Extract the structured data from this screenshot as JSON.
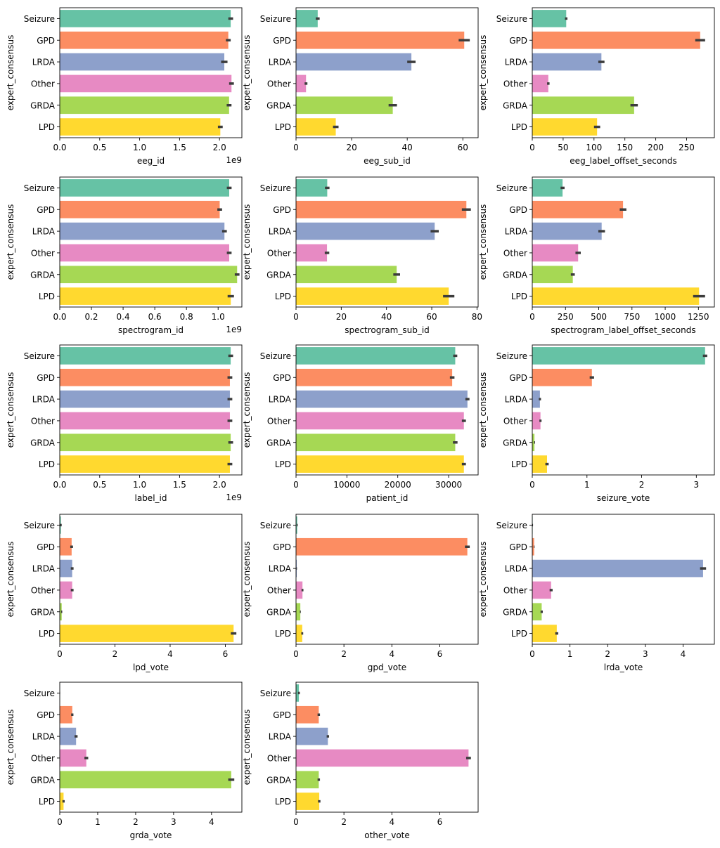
{
  "shared": {
    "categories": [
      "Seizure",
      "GPD",
      "LRDA",
      "Other",
      "GRDA",
      "LPD"
    ],
    "ylabel": "expert_consensus",
    "colors": [
      "#66c2a5",
      "#fc8d62",
      "#8da0cb",
      "#e78ac3",
      "#a6d854",
      "#ffd92f"
    ],
    "errorbar_color": "#3c3c3c"
  },
  "chart_data": [
    {
      "type": "bar",
      "orientation": "horizontal",
      "xlabel": "eeg_id",
      "offset_text": "1e9",
      "xlim": [
        0,
        2.28
      ],
      "xticks": [
        "0.0",
        "0.5",
        "1.0",
        "1.5",
        "2.0"
      ],
      "xtick_values": [
        0,
        0.5,
        1.0,
        1.5,
        2.0
      ],
      "values": [
        2.14,
        2.11,
        2.06,
        2.15,
        2.12,
        2.01
      ],
      "err": [
        0.03,
        0.03,
        0.04,
        0.03,
        0.03,
        0.03
      ]
    },
    {
      "type": "bar",
      "orientation": "horizontal",
      "xlabel": "eeg_sub_id",
      "offset_text": "",
      "xlim": [
        0,
        65.5
      ],
      "xticks": [
        "0",
        "20",
        "40",
        "60"
      ],
      "xtick_values": [
        0,
        20,
        40,
        60
      ],
      "values": [
        7.8,
        60.5,
        41.5,
        3.6,
        34.8,
        14.3
      ],
      "err": [
        0.7,
        2.0,
        1.5,
        0.5,
        1.5,
        1.0
      ]
    },
    {
      "type": "bar",
      "orientation": "horizontal",
      "xlabel": "eeg_label_offset_seconds",
      "offset_text": "",
      "xlim": [
        0,
        295
      ],
      "xticks": [
        "0",
        "50",
        "100",
        "150",
        "200",
        "250"
      ],
      "xtick_values": [
        0,
        50,
        100,
        150,
        200,
        250
      ],
      "values": [
        55,
        272,
        112,
        26,
        165,
        105
      ],
      "err": [
        2,
        8,
        5,
        2,
        6,
        5
      ]
    },
    {
      "type": "bar",
      "orientation": "horizontal",
      "xlabel": "spectrogram_id",
      "offset_text": "1e9",
      "xlim": [
        0,
        1.15
      ],
      "xticks": [
        "0.0",
        "0.2",
        "0.4",
        "0.6",
        "0.8",
        "1.0"
      ],
      "xtick_values": [
        0,
        0.2,
        0.4,
        0.6,
        0.8,
        1.0
      ],
      "values": [
        1.07,
        1.01,
        1.04,
        1.07,
        1.12,
        1.08
      ],
      "err": [
        0.015,
        0.015,
        0.015,
        0.015,
        0.015,
        0.02
      ]
    },
    {
      "type": "bar",
      "orientation": "horizontal",
      "xlabel": "spectrogram_sub_id",
      "offset_text": "",
      "xlim": [
        0,
        80.5
      ],
      "xticks": [
        "0",
        "20",
        "40",
        "60",
        "80"
      ],
      "xtick_values": [
        0,
        20,
        40,
        60,
        80
      ],
      "values": [
        13.8,
        75.3,
        61.3,
        13.7,
        44.5,
        67.5
      ],
      "err": [
        1.0,
        2.0,
        1.8,
        1.0,
        1.5,
        2.5
      ]
    },
    {
      "type": "bar",
      "orientation": "horizontal",
      "xlabel": "spectrogram_label_offset_seconds",
      "offset_text": "",
      "xlim": [
        0,
        1370
      ],
      "xticks": [
        "0",
        "250",
        "500",
        "750",
        "1000",
        "1250"
      ],
      "xtick_values": [
        0,
        250,
        500,
        750,
        1000,
        1250
      ],
      "values": [
        228,
        683,
        522,
        345,
        305,
        1255
      ],
      "err": [
        15,
        25,
        25,
        20,
        15,
        45
      ]
    },
    {
      "type": "bar",
      "orientation": "horizontal",
      "xlabel": "label_id",
      "offset_text": "1e9",
      "xlim": [
        0,
        2.28
      ],
      "xticks": [
        "0.0",
        "0.5",
        "1.0",
        "1.5",
        "2.0"
      ],
      "xtick_values": [
        0,
        0.5,
        1.0,
        1.5,
        2.0
      ],
      "values": [
        2.14,
        2.13,
        2.13,
        2.13,
        2.14,
        2.13
      ],
      "err": [
        0.03,
        0.03,
        0.03,
        0.03,
        0.03,
        0.03
      ]
    },
    {
      "type": "bar",
      "orientation": "horizontal",
      "xlabel": "patient_id",
      "offset_text": "",
      "xlim": [
        0,
        35800
      ],
      "xticks": [
        "0",
        "10000",
        "20000",
        "30000"
      ],
      "xtick_values": [
        0,
        10000,
        20000,
        30000
      ],
      "values": [
        31300,
        30700,
        33700,
        33000,
        31300,
        33000
      ],
      "err": [
        400,
        450,
        400,
        400,
        450,
        400
      ]
    },
    {
      "type": "bar",
      "orientation": "horizontal",
      "xlabel": "seizure_vote",
      "offset_text": "",
      "xlim": [
        0,
        3.33
      ],
      "xticks": [
        "0",
        "1",
        "2",
        "3"
      ],
      "xtick_values": [
        0,
        1,
        2,
        3
      ],
      "values": [
        3.16,
        1.09,
        0.14,
        0.15,
        0.04,
        0.27
      ],
      "err": [
        0.04,
        0.04,
        0.02,
        0.02,
        0.01,
        0.03
      ]
    },
    {
      "type": "bar",
      "orientation": "horizontal",
      "xlabel": "lpd_vote",
      "offset_text": "",
      "xlim": [
        0,
        6.6
      ],
      "xticks": [
        "0",
        "2",
        "4",
        "6"
      ],
      "xtick_values": [
        0,
        2,
        4,
        6
      ],
      "values": [
        0.04,
        0.43,
        0.45,
        0.45,
        0.07,
        6.3
      ],
      "err": [
        0.03,
        0.05,
        0.05,
        0.05,
        0.02,
        0.1
      ]
    },
    {
      "type": "bar",
      "orientation": "horizontal",
      "xlabel": "gpd_vote",
      "offset_text": "",
      "xlim": [
        0,
        7.6
      ],
      "xticks": [
        "0",
        "2",
        "4",
        "6"
      ],
      "xtick_values": [
        0,
        2,
        4,
        6
      ],
      "values": [
        0.05,
        7.15,
        0.03,
        0.27,
        0.18,
        0.26
      ],
      "err": [
        0.02,
        0.1,
        0.01,
        0.04,
        0.02,
        0.04
      ]
    },
    {
      "type": "bar",
      "orientation": "horizontal",
      "xlabel": "lrda_vote",
      "offset_text": "",
      "xlim": [
        0,
        4.83
      ],
      "xticks": [
        "0",
        "1",
        "2",
        "3",
        "4"
      ],
      "xtick_values": [
        0,
        1,
        2,
        3,
        4
      ],
      "values": [
        0.01,
        0.05,
        4.53,
        0.5,
        0.25,
        0.65
      ],
      "err": [
        0.01,
        0.01,
        0.08,
        0.04,
        0.03,
        0.04
      ]
    },
    {
      "type": "bar",
      "orientation": "horizontal",
      "xlabel": "grda_vote",
      "offset_text": "",
      "xlim": [
        0,
        4.8
      ],
      "xticks": [
        "0",
        "1",
        "2",
        "3",
        "4"
      ],
      "xtick_values": [
        0,
        1,
        2,
        3,
        4
      ],
      "values": [
        0.005,
        0.33,
        0.43,
        0.7,
        4.52,
        0.1
      ],
      "err": [
        0.005,
        0.03,
        0.04,
        0.05,
        0.08,
        0.03
      ]
    },
    {
      "type": "bar",
      "orientation": "horizontal",
      "xlabel": "other_vote",
      "offset_text": "",
      "xlim": [
        0,
        7.6
      ],
      "xticks": [
        "0",
        "2",
        "4",
        "6"
      ],
      "xtick_values": [
        0,
        2,
        4,
        6
      ],
      "values": [
        0.12,
        0.95,
        1.33,
        7.2,
        0.95,
        0.97
      ],
      "err": [
        0.04,
        0.05,
        0.05,
        0.1,
        0.05,
        0.05
      ]
    }
  ]
}
